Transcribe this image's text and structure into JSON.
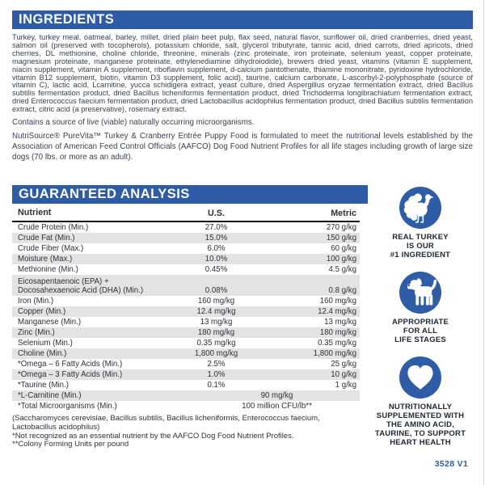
{
  "colors": {
    "accent_blue": "#2e5ca6",
    "stripe_gray": "#e3e3e3"
  },
  "ingredients": {
    "title": "INGREDIENTS",
    "paragraph1": "Turkey, turkey meal, oatmeal, barley, millet, dried plain beet pulp, flax seed, natural flavor, sunflower oil, dried cranberries, dried yeast, salmon oil (preserved with tocopherols), potassium chloride, salt, glycerol tributyrate, tannic acid, dried carrots, dried apricots, dried cherries, DL methionine, choline chloride, threonine, minerals (zinc proteinate, iron proteinate, selenium yeast, copper proteinate, magnesium proteinate, manganese proteinate, ethylenediamine dihydroiodide), brewers dried yeast, vitamins (vitamin E supplement, niacin supplement, vitamin A supplement, riboflavin supplement, d-calcium pantothenate, thiamine mononitrate, pyridoxine hydrochloride, vitamin B12 supplement, biotin, vitamin D3 supplement, folic acid), taurine, calcium carbonate, L-ascorbyl-2-polyphosphate (source of vitamin C), lactic acid, Lcarnitine, yucca schidigera extract, yeast culture, dried Aspergillus oryzae fermentation extract, dried Bacillus subtilis fermentation product, dried Bacillus licheniformis fermentation product, dried Trichoderma longibrachiatum fermentation extract, dried Enterococcus faecium fermentation product, dried Lactobacillus acidophilus fermentation product, dried Bacillus subtilis fermentation extract, citric acid (a preservative), rosemary extract.",
    "paragraph2": "Contains a source of live (viable) naturally occurring microorganisms.",
    "paragraph3": "NutriSource® PureVita™ Turkey & Cranberry Entrée Puppy Food is formulated to meet the nutritional levels established by the Association of American Feed Control Officials (AAFCO) Dog Food Nutrient Profiles for all life stages including growth of large size dogs (70 lbs. or more as an adult)."
  },
  "guaranteed_analysis": {
    "title": "GUARANTEED ANALYSIS",
    "columns": {
      "nutrient": "Nutrient",
      "us": "U.S.",
      "metric": "Metric"
    },
    "rows": [
      {
        "nutrient": "Crude Protein (Min.)",
        "us": "27.0%",
        "metric": "270 g/kg"
      },
      {
        "nutrient": "Crude Fat (Min.)",
        "us": "15.0%",
        "metric": "150 g/kg"
      },
      {
        "nutrient": "Crude Fiber (Max.)",
        "us": "6.0%",
        "metric": "60 g/kg"
      },
      {
        "nutrient": "Moisture (Max.)",
        "us": "10.0%",
        "metric": "100 g/kg"
      },
      {
        "nutrient": "Methionine (Min.)",
        "us": "0.45%",
        "metric": "4.5 g/kg"
      },
      {
        "nutrient": "Eicosapentaenoic (EPA) +\nDocosahexaenoic Acid (DHA) (Min.)",
        "us": "0.08%",
        "metric": "0.8 g/kg",
        "two_line": true
      },
      {
        "nutrient": "Iron (Min.)",
        "us": "160 mg/kg",
        "metric": "160 mg/kg"
      },
      {
        "nutrient": "Copper (Min.)",
        "us": "12.4 mg/kg",
        "metric": "12.4 mg/kg"
      },
      {
        "nutrient": "Manganese (Min.)",
        "us": "13 mg/kg",
        "metric": "13 mg/kg"
      },
      {
        "nutrient": "Zinc (Min.)",
        "us": "180 mg/kg",
        "metric": "180 mg/kg"
      },
      {
        "nutrient": "Selenium (Min.)",
        "us": "0.35 mg/kg",
        "metric": "0.35 mg/kg"
      },
      {
        "nutrient": "Choline (Min.)",
        "us": "1,800 mg/kg",
        "metric": "1,800 mg/kg"
      },
      {
        "nutrient": "*Omega – 6 Fatty Acids (Min.)",
        "us": "2.5%",
        "metric": "25 g/kg"
      },
      {
        "nutrient": "*Omega – 3 Fatty Acids (Min.)",
        "us": "1.0%",
        "metric": "10 g/kg"
      },
      {
        "nutrient": "*Taurine (Min.)",
        "us": "0.1%",
        "metric": "1 g/kg"
      },
      {
        "nutrient": "*L-Carnitine (Min.)",
        "value": "90 mg/kg",
        "span": true
      },
      {
        "nutrient": "*Total Microorganisms (Min.)",
        "value": "100 million CFU/lb**",
        "span": true
      }
    ],
    "footnotes": "(Saccharomyces cerevisiae, Bacillus subtilis, Bacillus licheniformis, Enterococcus faecium, Lactobacillus acidophilus)\n*Not recognized as an essential nutrient by the AAFCO Dog Food Nutrient Profiles.\n**Colony Forming Units per pound"
  },
  "badges": [
    {
      "icon": "turkey-icon",
      "caption": "REAL TURKEY\nIS OUR\n#1 INGREDIENT"
    },
    {
      "icon": "dog-icon",
      "caption": "APPROPRIATE\nFOR ALL\nLIFE STAGES"
    },
    {
      "icon": "heart-icon",
      "caption": "NUTRITIONALLY\nSUPPLEMENTED WITH\nTHE AMINO ACID,\nTAURINE, TO SUPPORT\nHEART HEALTH"
    }
  ],
  "footer": {
    "code": "3528 V1"
  }
}
